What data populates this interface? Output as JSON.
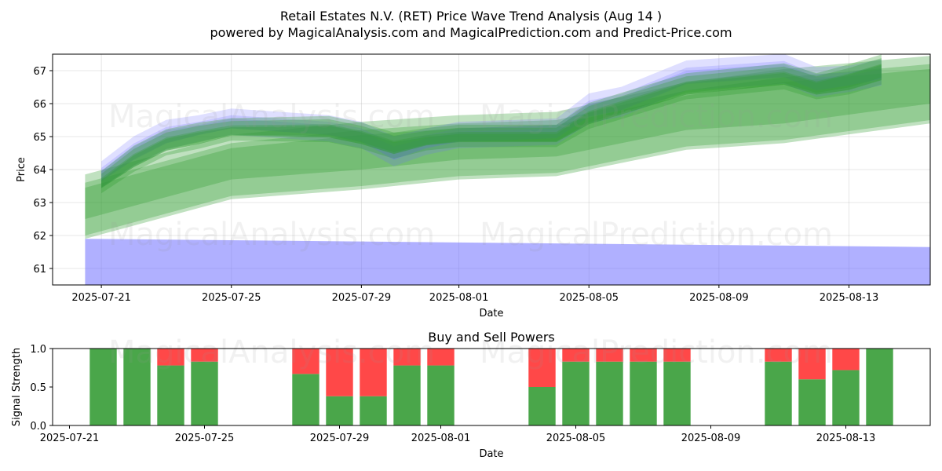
{
  "title_line1": "Retail Estates N.V. (RET) Price Wave Trend Analysis (Aug 14 )",
  "title_line2": "powered by MagicalAnalysis.com and MagicalPrediction.com and Predict-Price.com",
  "watermarks": [
    "MagicalAnalysis.com",
    "MagicalPrediction.com"
  ],
  "colors": {
    "green": "#2e9a2e",
    "blue": "#6f6fff",
    "bar_green": "#4aa64a",
    "bar_red": "#ff4848"
  },
  "chart_data": [
    {
      "type": "area",
      "xlabel": "Date",
      "ylabel": "Price",
      "ylim": [
        60.5,
        67.5
      ],
      "yticks": [
        61,
        62,
        63,
        64,
        65,
        66,
        67
      ],
      "xlim": [
        "2025-07-19T12:00",
        "2025-08-15T12:00"
      ],
      "xticks": [
        "2025-07-21",
        "2025-07-25",
        "2025-07-29",
        "2025-08-01",
        "2025-08-05",
        "2025-08-09",
        "2025-08-13"
      ],
      "grid": true,
      "series": [
        {
          "kind": "blue-bands",
          "x": [
            "2025-07-21",
            "2025-07-22",
            "2025-07-23",
            "2025-07-24",
            "2025-07-25",
            "2025-07-28",
            "2025-07-29",
            "2025-07-30",
            "2025-07-31",
            "2025-08-01",
            "2025-08-04",
            "2025-08-05",
            "2025-08-06",
            "2025-08-07",
            "2025-08-08",
            "2025-08-11",
            "2025-08-12",
            "2025-08-13",
            "2025-08-14"
          ],
          "center": [
            63.8,
            64.5,
            65.0,
            65.2,
            65.4,
            65.2,
            65.0,
            64.5,
            64.8,
            65.0,
            65.1,
            65.8,
            66.0,
            66.4,
            66.8,
            67.0,
            66.6,
            66.7,
            66.9
          ],
          "half_width": [
            0.25,
            0.3,
            0.3,
            0.25,
            0.25,
            0.25,
            0.25,
            0.3,
            0.25,
            0.25,
            0.25,
            0.3,
            0.3,
            0.3,
            0.3,
            0.3,
            0.3,
            0.25,
            0.25
          ]
        },
        {
          "kind": "blue-wide-band",
          "x": [
            "2025-07-20T12:00",
            "2025-08-15T12:00"
          ],
          "upper": [
            61.9,
            61.65
          ],
          "lower": [
            60.5,
            60.5
          ]
        },
        {
          "kind": "green-bands",
          "x": [
            "2025-07-21",
            "2025-07-22",
            "2025-07-23",
            "2025-07-24",
            "2025-07-25",
            "2025-07-28",
            "2025-07-29",
            "2025-07-30",
            "2025-07-31",
            "2025-08-01",
            "2025-08-04",
            "2025-08-05",
            "2025-08-06",
            "2025-08-07",
            "2025-08-08",
            "2025-08-11",
            "2025-08-12",
            "2025-08-13",
            "2025-08-14"
          ],
          "center": [
            63.6,
            64.3,
            64.8,
            65.0,
            65.2,
            65.2,
            65.0,
            64.7,
            64.9,
            65.0,
            65.0,
            65.6,
            65.9,
            66.2,
            66.5,
            66.8,
            66.5,
            66.7,
            67.0
          ],
          "half_width": [
            0.2,
            0.25,
            0.25,
            0.25,
            0.2,
            0.25,
            0.25,
            0.25,
            0.2,
            0.2,
            0.2,
            0.25,
            0.25,
            0.25,
            0.25,
            0.25,
            0.25,
            0.3,
            0.3
          ]
        },
        {
          "kind": "green-wide-bands",
          "x": [
            "2025-07-20T12:00",
            "2025-07-25",
            "2025-07-29",
            "2025-08-01",
            "2025-08-04",
            "2025-08-08",
            "2025-08-11",
            "2025-08-15T12:00"
          ],
          "upper": [
            63.6,
            64.8,
            65.2,
            65.4,
            65.5,
            66.4,
            66.8,
            67.2
          ],
          "lower": [
            61.9,
            63.1,
            63.4,
            63.7,
            63.8,
            64.6,
            64.8,
            65.4
          ]
        }
      ]
    },
    {
      "type": "bar",
      "title": "Buy and Sell Powers",
      "xlabel": "Date",
      "ylabel": "Signal Strength",
      "ylim": [
        0,
        1
      ],
      "yticks": [
        "0.0",
        "0.5",
        "1.0"
      ],
      "xlim": [
        "2025-07-20T12:00",
        "2025-08-15T12:00"
      ],
      "xticks": [
        "2025-07-21",
        "2025-07-25",
        "2025-07-29",
        "2025-08-01",
        "2025-08-05",
        "2025-08-09",
        "2025-08-13"
      ],
      "x": [
        "2025-07-22",
        "2025-07-23",
        "2025-07-24",
        "2025-07-25",
        "2025-07-28",
        "2025-07-29",
        "2025-07-30",
        "2025-07-31",
        "2025-08-01",
        "2025-08-04",
        "2025-08-05",
        "2025-08-06",
        "2025-08-07",
        "2025-08-08",
        "2025-08-11",
        "2025-08-12",
        "2025-08-13",
        "2025-08-14"
      ],
      "buy": [
        1.0,
        1.0,
        0.78,
        0.83,
        0.67,
        0.38,
        0.38,
        0.78,
        0.78,
        0.5,
        0.83,
        0.83,
        0.83,
        0.83,
        0.83,
        0.6,
        0.72,
        1.0
      ],
      "sell": [
        0.0,
        0.0,
        0.22,
        0.17,
        0.33,
        0.62,
        0.62,
        0.22,
        0.22,
        0.5,
        0.17,
        0.17,
        0.17,
        0.17,
        0.17,
        0.4,
        0.28,
        0.0
      ]
    }
  ]
}
